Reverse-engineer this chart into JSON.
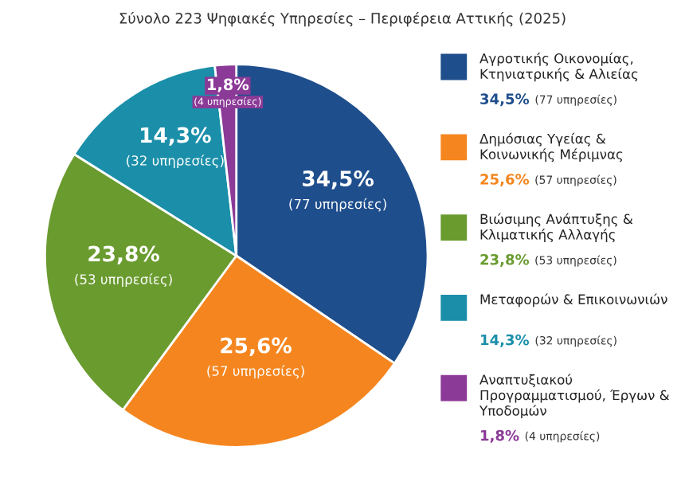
{
  "chart_data": {
    "type": "pie",
    "title": "Σύνολο 223 Ψηφιακές Υπηρεσίες – Περιφέρεια Αττικής (2025)",
    "categories": [
      "Αγροτικής Οικονομίας, Κτηνιατρικής & Αλιείας",
      "Δημόσιας Υγείας & Κοινωνικής Μέριμνας",
      "Βιώσιμης Ανάπτυξης & Κλιματικής Αλλαγής",
      "Μεταφορών & Επικοινωνιών",
      "Αναπτυξιακού Προγραμματισμού, Έργων & Υποδομών"
    ],
    "values": [
      34.5,
      25.6,
      23.8,
      14.3,
      1.8
    ],
    "value_labels": [
      "34,5% (77 υπηρεσίες)",
      "25,6% (57 υπηρεσίες)",
      "23,8% (53 υπηρεσίες)",
      "14,3% (32 υπηρεσίες)",
      "1,8% (4 υπηρεσίες)"
    ],
    "colors": [
      "#1f4e8c",
      "#f5861f",
      "#6a9b2f",
      "#1b8fa9",
      "#8b3a97"
    ],
    "legend": "right"
  }
}
